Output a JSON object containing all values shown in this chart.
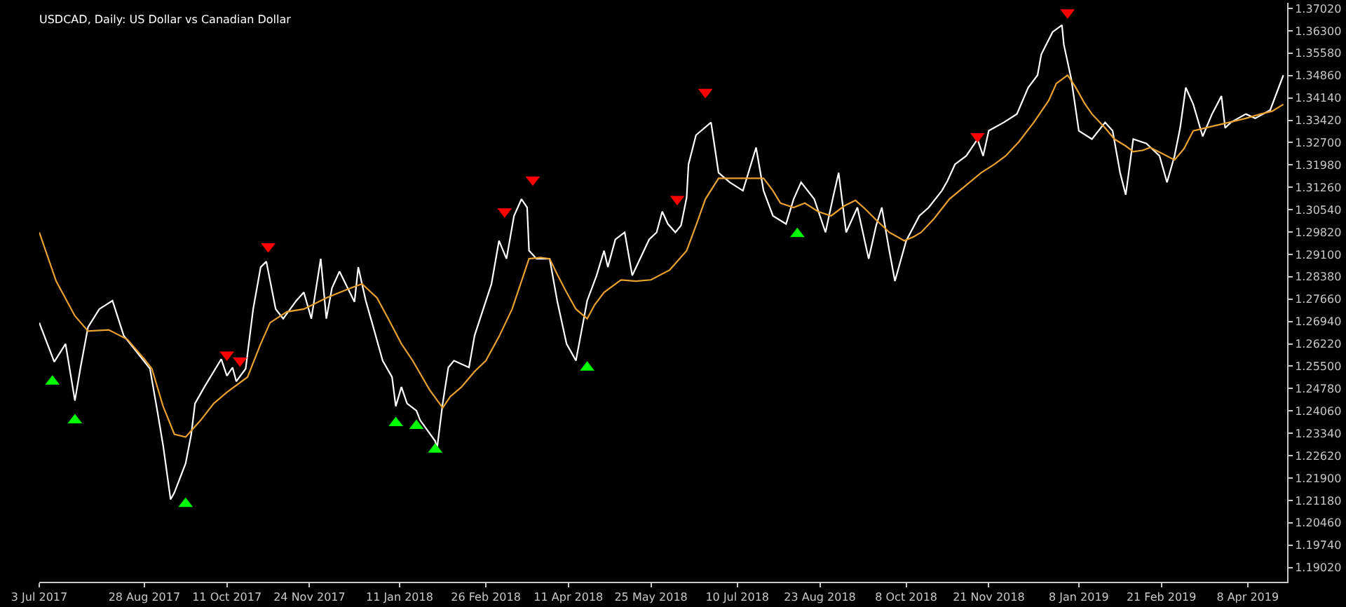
{
  "chart_data": {
    "type": "line",
    "title": "USDCAD, Daily: US Dollar vs Canadian Dollar",
    "xlim": [
      "2017-07-03",
      "2019-04-29"
    ],
    "xticks": [
      {
        "value": "2017-07-03",
        "label": "3 Jul 2017"
      },
      {
        "value": "2017-08-28",
        "label": "28 Aug 2017"
      },
      {
        "value": "2017-10-11",
        "label": "11 Oct 2017"
      },
      {
        "value": "2017-11-24",
        "label": "24 Nov 2017"
      },
      {
        "value": "2018-01-11",
        "label": "11 Jan 2018"
      },
      {
        "value": "2018-02-26",
        "label": "26 Feb 2018"
      },
      {
        "value": "2018-04-11",
        "label": "11 Apr 2018"
      },
      {
        "value": "2018-05-25",
        "label": "25 May 2018"
      },
      {
        "value": "2018-07-10",
        "label": "10 Jul 2018"
      },
      {
        "value": "2018-08-23",
        "label": "23 Aug 2018"
      },
      {
        "value": "2018-10-08",
        "label": "8 Oct 2018"
      },
      {
        "value": "2018-11-21",
        "label": "21 Nov 2018"
      },
      {
        "value": "2019-01-08",
        "label": "8 Jan 2019"
      },
      {
        "value": "2019-02-21",
        "label": "21 Feb 2019"
      },
      {
        "value": "2019-04-08",
        "label": "8 Apr 2019"
      }
    ],
    "ylim": [
      1.1856,
      1.372
    ],
    "yticks": [
      {
        "value": 1.3702,
        "label": "1.37020"
      },
      {
        "value": 1.363,
        "label": "1.36300"
      },
      {
        "value": 1.3558,
        "label": "1.35580"
      },
      {
        "value": 1.3486,
        "label": "1.34860"
      },
      {
        "value": 1.3414,
        "label": "1.34140"
      },
      {
        "value": 1.3342,
        "label": "1.33420"
      },
      {
        "value": 1.327,
        "label": "1.32700"
      },
      {
        "value": 1.3198,
        "label": "1.31980"
      },
      {
        "value": 1.3126,
        "label": "1.31260"
      },
      {
        "value": 1.3054,
        "label": "1.30540"
      },
      {
        "value": 1.2982,
        "label": "1.29820"
      },
      {
        "value": 1.291,
        "label": "1.29100"
      },
      {
        "value": 1.2838,
        "label": "1.28380"
      },
      {
        "value": 1.2766,
        "label": "1.27660"
      },
      {
        "value": 1.2694,
        "label": "1.26940"
      },
      {
        "value": 1.2622,
        "label": "1.26220"
      },
      {
        "value": 1.255,
        "label": "1.25500"
      },
      {
        "value": 1.2478,
        "label": "1.24780"
      },
      {
        "value": 1.2406,
        "label": "1.24060"
      },
      {
        "value": 1.2334,
        "label": "1.23340"
      },
      {
        "value": 1.2262,
        "label": "1.22620"
      },
      {
        "value": 1.219,
        "label": "1.21900"
      },
      {
        "value": 1.2118,
        "label": "1.21180"
      },
      {
        "value": 1.2046,
        "label": "1.20460"
      },
      {
        "value": 1.1974,
        "label": "1.19740"
      },
      {
        "value": 1.1902,
        "label": "1.19020"
      }
    ],
    "series": [
      {
        "color": "#ffffff",
        "x": [
          "2017-07-03",
          "2017-07-11",
          "2017-07-17",
          "2017-07-22",
          "2017-07-25",
          "2017-07-29",
          "2017-08-04",
          "2017-08-11",
          "2017-08-17",
          "2017-08-31",
          "2017-09-04",
          "2017-09-07",
          "2017-09-11",
          "2017-09-13",
          "2017-09-19",
          "2017-09-22",
          "2017-09-24",
          "2017-09-29",
          "2017-10-08",
          "2017-10-11",
          "2017-10-14",
          "2017-10-16",
          "2017-10-21",
          "2017-10-25",
          "2017-10-29",
          "2017-11-01",
          "2017-11-06",
          "2017-11-10",
          "2017-11-17",
          "2017-11-21",
          "2017-11-25",
          "2017-11-30",
          "2017-12-03",
          "2017-12-06",
          "2017-12-10",
          "2017-12-18",
          "2017-12-20",
          "2017-12-24",
          "2017-12-28",
          "2018-01-02",
          "2018-01-07",
          "2018-01-09",
          "2018-01-12",
          "2018-01-15",
          "2018-01-20",
          "2018-01-22",
          "2018-01-30",
          "2018-01-31",
          "2018-02-03",
          "2018-02-06",
          "2018-02-09",
          "2018-02-17",
          "2018-02-20",
          "2018-03-01",
          "2018-03-05",
          "2018-03-09",
          "2018-03-13",
          "2018-03-17",
          "2018-03-20",
          "2018-03-21",
          "2018-03-25",
          "2018-04-01",
          "2018-04-05",
          "2018-04-10",
          "2018-04-15",
          "2018-04-21",
          "2018-04-26",
          "2018-04-30",
          "2018-05-02",
          "2018-05-06",
          "2018-05-11",
          "2018-05-15",
          "2018-05-24",
          "2018-05-28",
          "2018-05-31",
          "2018-06-03",
          "2018-06-07",
          "2018-06-10",
          "2018-06-13",
          "2018-06-14",
          "2018-06-18",
          "2018-06-26",
          "2018-06-30",
          "2018-07-06",
          "2018-07-13",
          "2018-07-20",
          "2018-07-24",
          "2018-07-29",
          "2018-08-05",
          "2018-08-09",
          "2018-08-13",
          "2018-08-20",
          "2018-08-26",
          "2018-08-30",
          "2018-09-02",
          "2018-09-06",
          "2018-09-12",
          "2018-09-18",
          "2018-09-22",
          "2018-09-25",
          "2018-09-29",
          "2018-10-02",
          "2018-10-08",
          "2018-10-15",
          "2018-10-20",
          "2018-10-27",
          "2018-10-30",
          "2018-11-03",
          "2018-11-09",
          "2018-11-15",
          "2018-11-18",
          "2018-11-21",
          "2018-11-29",
          "2018-12-06",
          "2018-12-12",
          "2018-12-17",
          "2018-12-19",
          "2018-12-25",
          "2018-12-30",
          "2018-12-31",
          "2019-01-04",
          "2019-01-08",
          "2019-01-15",
          "2019-01-22",
          "2019-01-26",
          "2019-01-30",
          "2019-02-02",
          "2019-02-06",
          "2019-02-13",
          "2019-02-20",
          "2019-02-24",
          "2019-02-28",
          "2019-03-03",
          "2019-03-06",
          "2019-03-10",
          "2019-03-15",
          "2019-03-20",
          "2019-03-25",
          "2019-03-27",
          "2019-03-30",
          "2019-04-07",
          "2019-04-12",
          "2019-04-20",
          "2019-04-27"
        ],
        "values": [
          1.269,
          1.2564,
          1.2622,
          1.2439,
          1.2546,
          1.2676,
          1.2734,
          1.2761,
          1.2649,
          1.2542,
          1.2403,
          1.2295,
          1.2121,
          1.2143,
          1.2237,
          1.2331,
          1.243,
          1.2483,
          1.2573,
          1.2519,
          1.2546,
          1.2501,
          1.2542,
          1.2734,
          1.2869,
          1.2887,
          1.2734,
          1.2703,
          1.2761,
          1.2788,
          1.2703,
          1.2896,
          1.2703,
          1.2802,
          1.2855,
          1.2757,
          1.2869,
          1.2761,
          1.2676,
          1.2568,
          1.2515,
          1.2421,
          1.2483,
          1.243,
          1.2407,
          1.2376,
          1.2309,
          1.2286,
          1.243,
          1.2546,
          1.2568,
          1.2546,
          1.2649,
          1.2815,
          1.2954,
          1.2896,
          1.3034,
          1.3088,
          1.3061,
          1.2922,
          1.2896,
          1.2896,
          1.2761,
          1.2622,
          1.2568,
          1.2761,
          1.2842,
          1.2922,
          1.2869,
          1.2958,
          1.2981,
          1.2842,
          1.2958,
          1.2981,
          1.3048,
          1.3008,
          1.2981,
          1.3003,
          1.3093,
          1.32,
          1.3294,
          1.3335,
          1.3173,
          1.3142,
          1.3115,
          1.3254,
          1.3115,
          1.3034,
          1.3008,
          1.3088,
          1.3142,
          1.3088,
          1.2981,
          1.3093,
          1.3173,
          1.2981,
          1.3061,
          1.2896,
          1.3003,
          1.3061,
          1.2922,
          1.2824,
          1.2954,
          1.3034,
          1.3061,
          1.3115,
          1.3147,
          1.32,
          1.3227,
          1.3281,
          1.3227,
          1.3308,
          1.3335,
          1.3362,
          1.3447,
          1.3487,
          1.3554,
          1.3626,
          1.3648,
          1.3586,
          1.3474,
          1.3308,
          1.3281,
          1.3335,
          1.3308,
          1.3173,
          1.3102,
          1.3281,
          1.3267,
          1.3227,
          1.3142,
          1.3227,
          1.3317,
          1.3447,
          1.3393,
          1.329,
          1.3362,
          1.342,
          1.3317,
          1.3335,
          1.3362,
          1.3348,
          1.3375,
          1.3487
        ]
      },
      {
        "color": "#e8a030",
        "x": [
          "2017-07-03",
          "2017-07-12",
          "2017-07-22",
          "2017-07-29",
          "2017-08-09",
          "2017-08-19",
          "2017-08-28",
          "2017-09-01",
          "2017-09-07",
          "2017-09-13",
          "2017-09-19",
          "2017-09-27",
          "2017-10-04",
          "2017-10-11",
          "2017-10-22",
          "2017-10-29",
          "2017-11-03",
          "2017-11-12",
          "2017-11-21",
          "2017-12-03",
          "2017-12-14",
          "2017-12-22",
          "2017-12-30",
          "2018-01-05",
          "2018-01-12",
          "2018-01-18",
          "2018-01-27",
          "2018-02-03",
          "2018-02-07",
          "2018-02-13",
          "2018-02-20",
          "2018-02-26",
          "2018-03-05",
          "2018-03-12",
          "2018-03-17",
          "2018-03-21",
          "2018-03-27",
          "2018-04-01",
          "2018-04-05",
          "2018-04-10",
          "2018-04-15",
          "2018-04-21",
          "2018-04-25",
          "2018-04-30",
          "2018-05-09",
          "2018-05-17",
          "2018-05-25",
          "2018-06-04",
          "2018-06-13",
          "2018-06-18",
          "2018-06-23",
          "2018-06-30",
          "2018-07-13",
          "2018-07-24",
          "2018-07-29",
          "2018-08-02",
          "2018-08-09",
          "2018-08-15",
          "2018-08-22",
          "2018-08-29",
          "2018-09-05",
          "2018-09-11",
          "2018-09-16",
          "2018-09-22",
          "2018-09-29",
          "2018-10-07",
          "2018-10-12",
          "2018-10-16",
          "2018-10-23",
          "2018-10-31",
          "2018-11-09",
          "2018-11-17",
          "2018-11-24",
          "2018-11-30",
          "2018-12-07",
          "2018-12-15",
          "2018-12-23",
          "2018-12-27",
          "2019-01-02",
          "2019-01-06",
          "2019-01-11",
          "2019-01-15",
          "2019-01-22",
          "2019-01-27",
          "2019-02-02",
          "2019-02-06",
          "2019-02-11",
          "2019-02-15",
          "2019-02-21",
          "2019-02-28",
          "2019-03-05",
          "2019-03-10",
          "2019-03-19",
          "2019-03-29",
          "2019-04-07",
          "2019-04-15",
          "2019-04-21",
          "2019-04-27"
        ],
        "values": [
          1.2981,
          1.2824,
          1.2712,
          1.2663,
          1.2667,
          1.2636,
          1.2573,
          1.2542,
          1.2421,
          1.2331,
          1.2322,
          1.2376,
          1.243,
          1.2466,
          1.2515,
          1.2622,
          1.269,
          1.2725,
          1.2734,
          1.277,
          1.2797,
          1.2815,
          1.277,
          1.2703,
          1.2622,
          1.2568,
          1.2474,
          1.2416,
          1.2452,
          1.2483,
          1.2533,
          1.2568,
          1.2645,
          1.2734,
          1.2824,
          1.2896,
          1.29,
          1.2896,
          1.2846,
          1.2788,
          1.2734,
          1.2703,
          1.2748,
          1.2788,
          1.2828,
          1.2824,
          1.2828,
          1.286,
          1.2922,
          1.3003,
          1.3088,
          1.3155,
          1.3155,
          1.3155,
          1.3115,
          1.3075,
          1.3061,
          1.3075,
          1.3048,
          1.3034,
          1.3066,
          1.3084,
          1.3057,
          1.3021,
          1.2981,
          1.2954,
          1.2967,
          1.2981,
          1.3026,
          1.3088,
          1.3133,
          1.3173,
          1.32,
          1.3227,
          1.3272,
          1.3335,
          1.3406,
          1.346,
          1.3487,
          1.3451,
          1.3397,
          1.3362,
          1.3317,
          1.3281,
          1.3259,
          1.3241,
          1.3245,
          1.3254,
          1.3236,
          1.3214,
          1.325,
          1.3308,
          1.3321,
          1.3335,
          1.3348,
          1.3362,
          1.3371,
          1.3393
        ]
      },
      {
        "type": "scatter",
        "marker": "triangle",
        "color": "#00ff00",
        "x": [
          "2017-07-10",
          "2017-07-22",
          "2017-09-19",
          "2018-01-09",
          "2018-01-20",
          "2018-01-30",
          "2018-04-21",
          "2018-08-11"
        ],
        "values": [
          1.2501,
          1.2376,
          1.2107,
          1.2367,
          1.2358,
          1.2282,
          1.2546,
          1.2976
        ]
      },
      {
        "type": "scatter",
        "marker": "triangle-down",
        "color": "#ff0000",
        "x": [
          "2017-10-11",
          "2017-10-18",
          "2017-11-02",
          "2018-03-08",
          "2018-03-23",
          "2018-06-08",
          "2018-06-23",
          "2018-11-15",
          "2019-01-02"
        ],
        "values": [
          1.2587,
          1.2568,
          1.2936,
          1.3048,
          1.3151,
          1.3088,
          1.3433,
          1.329,
          1.3689
        ]
      }
    ]
  }
}
